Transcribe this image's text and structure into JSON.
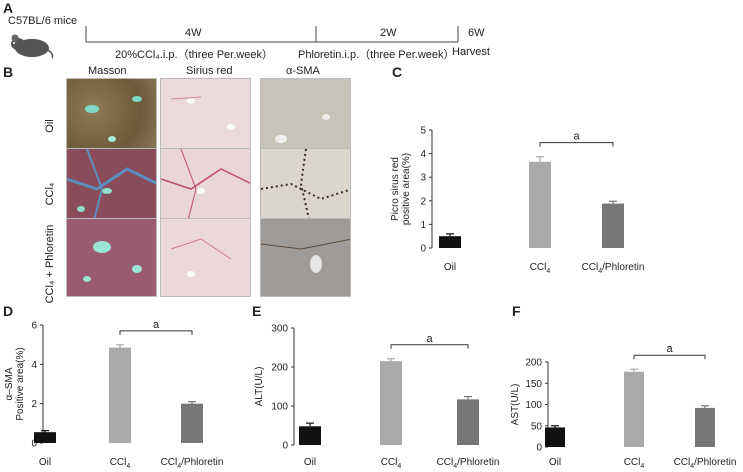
{
  "panel_a": {
    "letter": "A",
    "mouse_label": "C57BL/6  mice",
    "seg1_label": "4W",
    "seg2_label": "2W",
    "end_label": "6W",
    "step1": "20%CCl₄.i.p.（three  Per.week）",
    "step2": "Phloretin.i.p.（three  Per.week）",
    "step3": "Harvest"
  },
  "panel_b": {
    "letter": "B",
    "columns": [
      "Masson",
      "Sirius red",
      "α-SMA"
    ],
    "rows": [
      "Oil",
      "CCl₄",
      "CCl₄ + Phloretin"
    ]
  },
  "colors": {
    "oil": "#111111",
    "ccl4": "#aaaaaa",
    "ccl4_phloretin": "#777777"
  },
  "chart_data": [
    {
      "id": "C",
      "type": "bar",
      "categories": [
        "Oil",
        "CCl₄",
        "CCl₄/Phloretin"
      ],
      "values": [
        0.5,
        3.65,
        1.88
      ],
      "errors": [
        0.1,
        0.22,
        0.1
      ],
      "ylabel": "Picro sirus red positive area(%)",
      "ylim": [
        0,
        5
      ],
      "yticks": [
        0,
        1,
        2,
        3,
        4,
        5
      ],
      "significance": "a"
    },
    {
      "id": "D",
      "type": "bar",
      "categories": [
        "Oil",
        "CCl₄",
        "CCl₄/Phloretin"
      ],
      "values": [
        0.55,
        4.85,
        2.0
      ],
      "errors": [
        0.08,
        0.14,
        0.1
      ],
      "ylabel": "α–SMA Positive area(%)",
      "ylim": [
        0,
        6
      ],
      "yticks": [
        0,
        2,
        4,
        6
      ],
      "significance": "a"
    },
    {
      "id": "E",
      "type": "bar",
      "categories": [
        "Oil",
        "CCl₄",
        "CCl₄/Phloretin"
      ],
      "values": [
        48,
        215,
        117
      ],
      "errors": [
        8,
        6,
        7
      ],
      "ylabel": "ALT(U/L)",
      "ylim": [
        0,
        300
      ],
      "yticks": [
        0,
        100,
        200,
        300
      ],
      "significance": "a"
    },
    {
      "id": "F",
      "type": "bar",
      "categories": [
        "Oil",
        "CCl₄",
        "CCl₄/Phloretin"
      ],
      "values": [
        46,
        177,
        92
      ],
      "errors": [
        4,
        6,
        5
      ],
      "ylabel": "AST(U/L)",
      "ylim": [
        0,
        200
      ],
      "yticks": [
        0,
        50,
        100,
        150,
        200
      ],
      "significance": "a"
    }
  ]
}
